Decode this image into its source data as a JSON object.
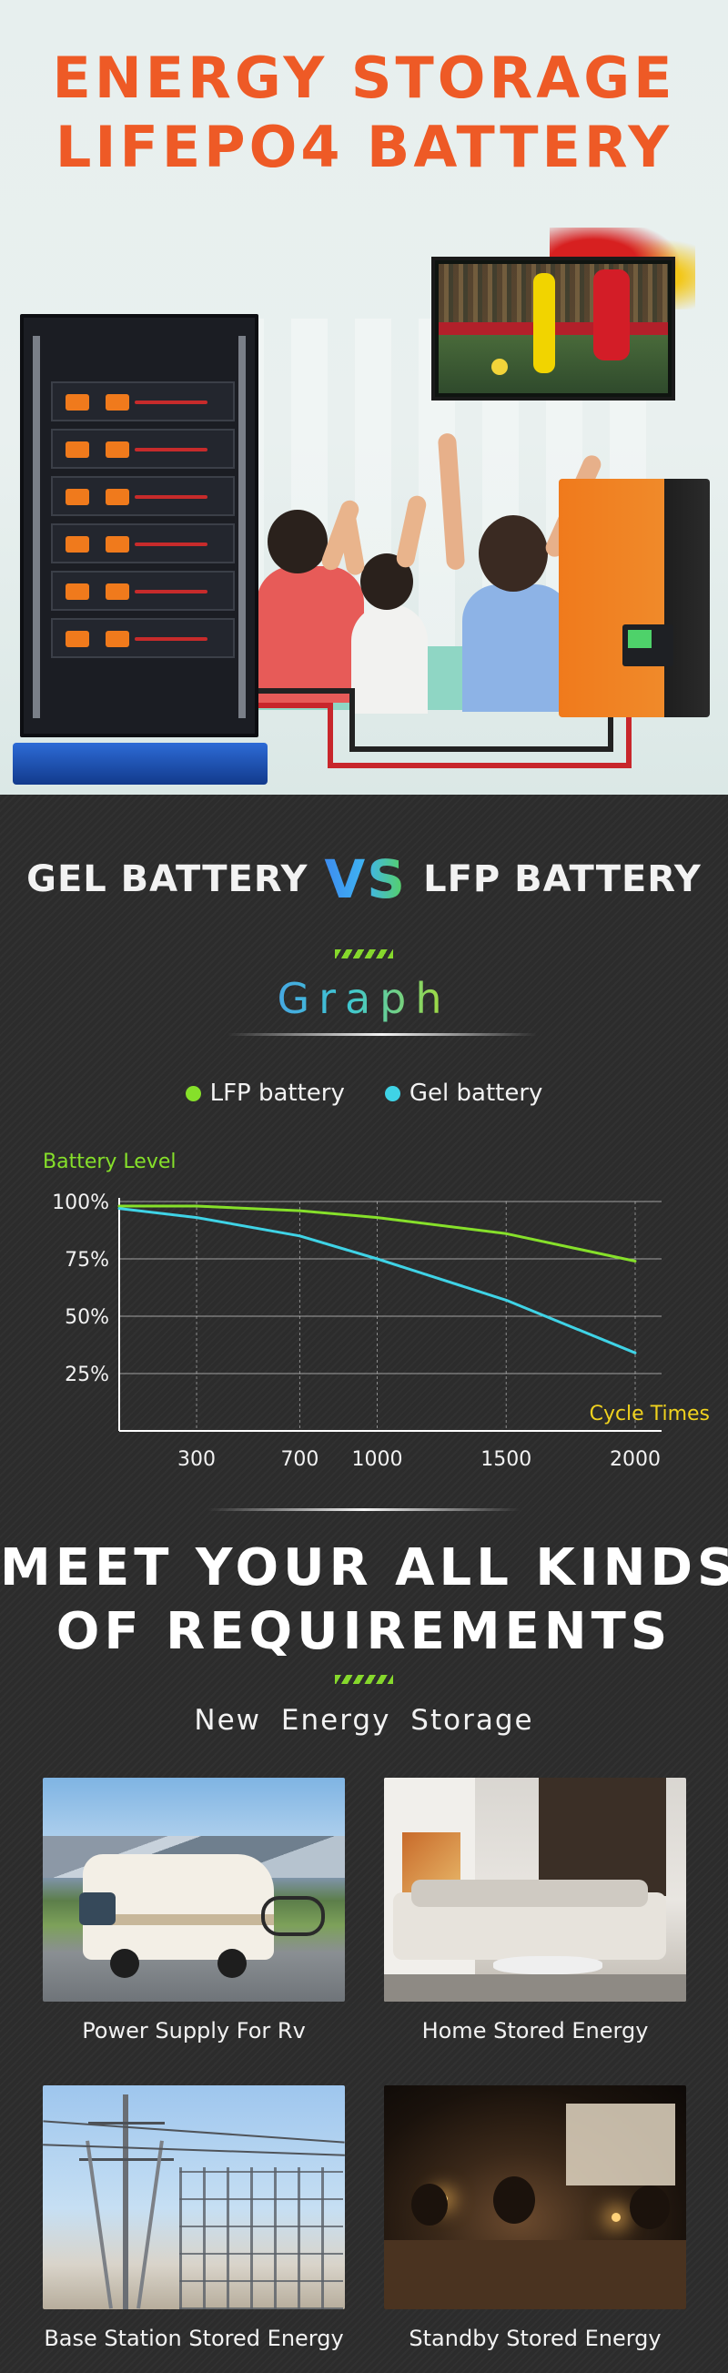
{
  "hero": {
    "title_line1": "ENERGY  STORAGE",
    "title_line2": "LIFEPO4  BATTERY"
  },
  "comparison": {
    "left": "GEL BATTERY",
    "vs": "VS",
    "right": "LFP BATTERY"
  },
  "chart_section_title": "Graph",
  "chart_data": {
    "type": "line",
    "title": "",
    "ylabel": "Battery Level",
    "xlabel": "Cycle Times",
    "x_ticks": [
      300,
      700,
      1000,
      1500,
      2000
    ],
    "y_ticks": [
      "100%",
      "75%",
      "50%",
      "25%"
    ],
    "ylim": [
      0,
      100
    ],
    "grid": true,
    "legend_position": "top",
    "series": [
      {
        "name": "LFP battery",
        "color": "#86e02a",
        "points": [
          [
            0,
            98
          ],
          [
            300,
            98
          ],
          [
            700,
            96
          ],
          [
            1000,
            93
          ],
          [
            1500,
            86
          ],
          [
            2000,
            74
          ]
        ]
      },
      {
        "name": "Gel battery",
        "color": "#3fd3e6",
        "points": [
          [
            0,
            97
          ],
          [
            300,
            93
          ],
          [
            700,
            85
          ],
          [
            1000,
            75
          ],
          [
            1500,
            57
          ],
          [
            2000,
            34
          ]
        ]
      }
    ]
  },
  "requirements": {
    "title_line1": "MEET  YOUR  ALL  KINDS",
    "title_line2": "OF  REQUIREMENTS",
    "subtitle": "New  Energy  Storage",
    "cards": [
      {
        "caption": "Power Supply For Rv",
        "icon": "rv-photo"
      },
      {
        "caption": "Home Stored Energy",
        "icon": "living-room-photo"
      },
      {
        "caption": "Base Station Stored Energy",
        "icon": "power-tower-photo"
      },
      {
        "caption": "Standby Stored Energy",
        "icon": "candlelight-photo"
      }
    ]
  }
}
